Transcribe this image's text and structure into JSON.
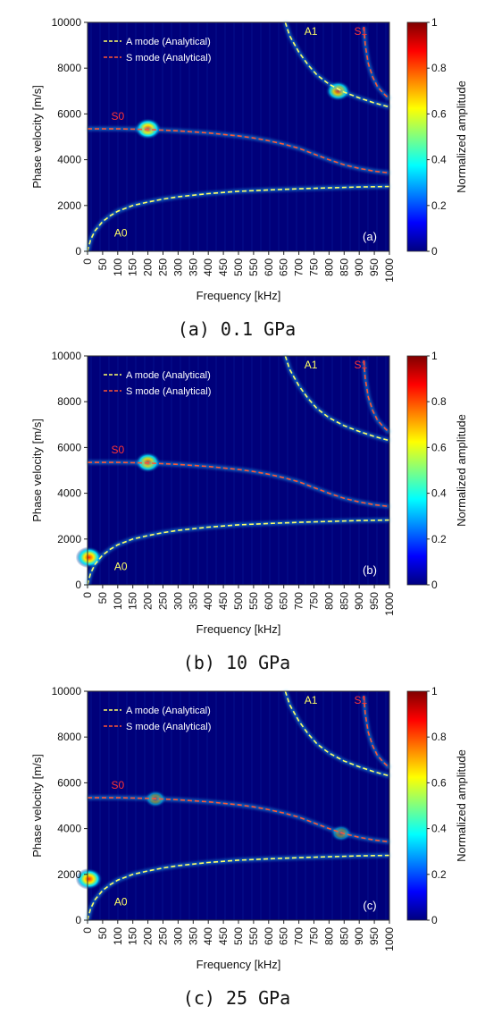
{
  "colors": {
    "background": "#00007a",
    "a_mode": "#ffff66",
    "s_mode": "#ff5533",
    "label_a": "#ffff66",
    "label_s": "#ff3333"
  },
  "colorbar": {
    "label": "Normalized amplitude",
    "ticks": [
      "0",
      "0.2",
      "0.4",
      "0.6",
      "0.8",
      "1"
    ],
    "colormap": "jet"
  },
  "chart_data": [
    {
      "type": "heatmap",
      "panel": "(a)",
      "caption": "(a) 0.1 GPa",
      "xlabel": "Frequency [kHz]",
      "ylabel": "Phase velocity [m/s]",
      "xlim": [
        0,
        1000
      ],
      "ylim": [
        0,
        10000
      ],
      "x_ticks": [
        "0",
        "50",
        "100",
        "150",
        "200",
        "250",
        "300",
        "350",
        "400",
        "450",
        "500",
        "550",
        "600",
        "650",
        "700",
        "750",
        "800",
        "850",
        "900",
        "950",
        "1000"
      ],
      "y_ticks": [
        "0",
        "2000",
        "4000",
        "6000",
        "8000",
        "10000"
      ],
      "legend": [
        {
          "name": "A mode (Analytical)",
          "style": "dashed",
          "color": "#ffff66"
        },
        {
          "name": "S mode (Analytical)",
          "style": "dashed",
          "color": "#ff5533"
        }
      ],
      "mode_labels": [
        {
          "text": "A0",
          "x": 110,
          "y": 800
        },
        {
          "text": "S0",
          "x": 100,
          "y": 5900
        },
        {
          "text": "A1",
          "x": 740,
          "y": 9600
        },
        {
          "text": "S1",
          "x": 905,
          "y": 9600
        }
      ],
      "series": [
        {
          "name": "A0",
          "family": "A",
          "x": [
            0,
            10,
            25,
            50,
            75,
            100,
            150,
            200,
            250,
            300,
            400,
            500,
            600,
            700,
            800,
            900,
            1000
          ],
          "y": [
            0,
            500,
            900,
            1300,
            1550,
            1750,
            2000,
            2150,
            2280,
            2380,
            2520,
            2620,
            2680,
            2730,
            2770,
            2810,
            2830
          ]
        },
        {
          "name": "S0",
          "family": "S",
          "x": [
            0,
            100,
            200,
            300,
            400,
            500,
            550,
            600,
            650,
            700,
            750,
            800,
            850,
            900,
            950,
            1000
          ],
          "y": [
            5350,
            5350,
            5320,
            5260,
            5170,
            5040,
            4950,
            4830,
            4680,
            4500,
            4250,
            4000,
            3780,
            3620,
            3500,
            3420
          ]
        },
        {
          "name": "A1",
          "family": "A",
          "x": [
            655,
            670,
            700,
            730,
            760,
            800,
            850,
            900,
            950,
            1000
          ],
          "y": [
            10000,
            9400,
            8700,
            8150,
            7700,
            7300,
            6950,
            6700,
            6480,
            6300
          ]
        },
        {
          "name": "S1",
          "family": "S",
          "x": [
            915,
            920,
            930,
            945,
            960,
            980,
            1000
          ],
          "y": [
            9800,
            9000,
            8200,
            7600,
            7200,
            6900,
            6650
          ]
        }
      ],
      "hotspots": [
        {
          "x": 200,
          "y": 5350,
          "amp": 1.0
        },
        {
          "x": 830,
          "y": 7000,
          "amp": 0.85
        }
      ]
    },
    {
      "type": "heatmap",
      "panel": "(b)",
      "caption": "(b) 10 GPa",
      "xlabel": "Frequency [kHz]",
      "ylabel": "Phase velocity [m/s]",
      "xlim": [
        0,
        1000
      ],
      "ylim": [
        0,
        10000
      ],
      "x_ticks": [
        "0",
        "50",
        "100",
        "150",
        "200",
        "250",
        "300",
        "350",
        "400",
        "450",
        "500",
        "550",
        "600",
        "650",
        "700",
        "750",
        "800",
        "850",
        "900",
        "950",
        "1000"
      ],
      "y_ticks": [
        "0",
        "2000",
        "4000",
        "6000",
        "8000",
        "10000"
      ],
      "legend": [
        {
          "name": "A mode (Analytical)",
          "style": "dashed",
          "color": "#ffff66"
        },
        {
          "name": "S mode (Analytical)",
          "style": "dashed",
          "color": "#ff5533"
        }
      ],
      "mode_labels": [
        {
          "text": "A0",
          "x": 110,
          "y": 800
        },
        {
          "text": "S0",
          "x": 100,
          "y": 5900
        },
        {
          "text": "A1",
          "x": 740,
          "y": 9600
        },
        {
          "text": "S1",
          "x": 905,
          "y": 9600
        }
      ],
      "series": [
        {
          "name": "A0",
          "family": "A",
          "x": [
            0,
            10,
            25,
            50,
            75,
            100,
            150,
            200,
            250,
            300,
            400,
            500,
            600,
            700,
            800,
            900,
            1000
          ],
          "y": [
            0,
            500,
            900,
            1300,
            1550,
            1750,
            2000,
            2150,
            2280,
            2380,
            2520,
            2620,
            2680,
            2730,
            2770,
            2810,
            2830
          ]
        },
        {
          "name": "S0",
          "family": "S",
          "x": [
            0,
            100,
            200,
            300,
            400,
            500,
            550,
            600,
            650,
            700,
            750,
            800,
            850,
            900,
            950,
            1000
          ],
          "y": [
            5350,
            5350,
            5320,
            5260,
            5170,
            5040,
            4950,
            4830,
            4680,
            4500,
            4250,
            4000,
            3780,
            3620,
            3500,
            3420
          ]
        },
        {
          "name": "A1",
          "family": "A",
          "x": [
            655,
            670,
            700,
            730,
            760,
            800,
            850,
            900,
            950,
            1000
          ],
          "y": [
            10000,
            9400,
            8700,
            8150,
            7700,
            7300,
            6950,
            6700,
            6480,
            6300
          ]
        },
        {
          "name": "S1",
          "family": "S",
          "x": [
            915,
            920,
            930,
            945,
            960,
            980,
            1000
          ],
          "y": [
            9800,
            9000,
            8200,
            7600,
            7200,
            6900,
            6650
          ]
        }
      ],
      "hotspots": [
        {
          "x": 5,
          "y": 1200,
          "amp": 1.0
        },
        {
          "x": 200,
          "y": 5350,
          "amp": 0.9
        }
      ]
    },
    {
      "type": "heatmap",
      "panel": "(c)",
      "caption": "(c) 25 GPa",
      "xlabel": "Frequency [kHz]",
      "ylabel": "Phase velocity [m/s]",
      "xlim": [
        0,
        1000
      ],
      "ylim": [
        0,
        10000
      ],
      "x_ticks": [
        "0",
        "50",
        "100",
        "150",
        "200",
        "250",
        "300",
        "350",
        "400",
        "450",
        "500",
        "550",
        "600",
        "650",
        "700",
        "750",
        "800",
        "850",
        "900",
        "950",
        "1000"
      ],
      "y_ticks": [
        "0",
        "2000",
        "4000",
        "6000",
        "8000",
        "10000"
      ],
      "legend": [
        {
          "name": "A mode (Analytical)",
          "style": "dashed",
          "color": "#ffff66"
        },
        {
          "name": "S mode (Analytical)",
          "style": "dashed",
          "color": "#ff5533"
        }
      ],
      "mode_labels": [
        {
          "text": "A0",
          "x": 110,
          "y": 800
        },
        {
          "text": "S0",
          "x": 100,
          "y": 5900
        },
        {
          "text": "A1",
          "x": 740,
          "y": 9600
        },
        {
          "text": "S1",
          "x": 905,
          "y": 9600
        }
      ],
      "series": [
        {
          "name": "A0",
          "family": "A",
          "x": [
            0,
            10,
            25,
            50,
            75,
            100,
            150,
            200,
            250,
            300,
            400,
            500,
            600,
            700,
            800,
            900,
            1000
          ],
          "y": [
            0,
            500,
            900,
            1300,
            1550,
            1750,
            2000,
            2150,
            2280,
            2380,
            2520,
            2620,
            2680,
            2730,
            2770,
            2810,
            2830
          ]
        },
        {
          "name": "S0",
          "family": "S",
          "x": [
            0,
            100,
            200,
            300,
            400,
            500,
            550,
            600,
            650,
            700,
            750,
            800,
            850,
            900,
            950,
            1000
          ],
          "y": [
            5350,
            5350,
            5320,
            5260,
            5170,
            5040,
            4950,
            4830,
            4680,
            4500,
            4250,
            4000,
            3780,
            3620,
            3500,
            3420
          ]
        },
        {
          "name": "A1",
          "family": "A",
          "x": [
            655,
            670,
            700,
            730,
            760,
            800,
            850,
            900,
            950,
            1000
          ],
          "y": [
            10000,
            9400,
            8700,
            8150,
            7700,
            7300,
            6950,
            6700,
            6480,
            6300
          ]
        },
        {
          "name": "S1",
          "family": "S",
          "x": [
            915,
            920,
            930,
            945,
            960,
            980,
            1000
          ],
          "y": [
            9800,
            9000,
            8200,
            7600,
            7200,
            6900,
            6650
          ]
        }
      ],
      "hotspots": [
        {
          "x": 5,
          "y": 1800,
          "amp": 1.0
        },
        {
          "x": 225,
          "y": 5300,
          "amp": 0.55
        },
        {
          "x": 840,
          "y": 3800,
          "amp": 0.5
        }
      ]
    }
  ]
}
